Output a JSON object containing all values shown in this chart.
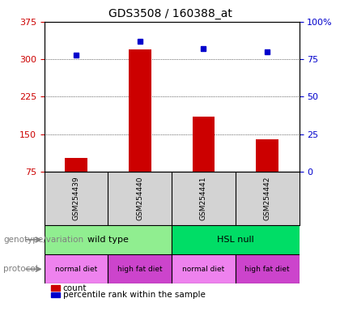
{
  "title": "GDS3508 / 160388_at",
  "samples": [
    "GSM254439",
    "GSM254440",
    "GSM254441",
    "GSM254442"
  ],
  "counts": [
    103,
    319,
    185,
    140
  ],
  "percentile_ranks": [
    78,
    87,
    82,
    80
  ],
  "ylim_left": [
    75,
    375
  ],
  "ylim_right": [
    0,
    100
  ],
  "left_ticks": [
    75,
    150,
    225,
    300,
    375
  ],
  "right_ticks": [
    0,
    25,
    50,
    75,
    100
  ],
  "bar_color": "#cc0000",
  "dot_color": "#0000cc",
  "genotype_groups": [
    {
      "label": "wild type",
      "cols": [
        0,
        1
      ],
      "color": "#90ee90"
    },
    {
      "label": "HSL null",
      "cols": [
        2,
        3
      ],
      "color": "#00ee76"
    }
  ],
  "protocol_groups": [
    {
      "label": "normal diet",
      "col": 0,
      "color": "#ee82ee"
    },
    {
      "label": "high fat diet",
      "col": 1,
      "color": "#da70d6"
    },
    {
      "label": "normal diet",
      "col": 2,
      "color": "#ee82ee"
    },
    {
      "label": "high fat diet",
      "col": 3,
      "color": "#da70d6"
    }
  ],
  "genotype_label": "genotype/variation",
  "protocol_label": "protocol",
  "legend_count_label": "count",
  "legend_pct_label": "percentile rank within the sample",
  "plot_bg": "#f0f0f0",
  "tick_label_color_left": "#cc0000",
  "tick_label_color_right": "#0000cc"
}
